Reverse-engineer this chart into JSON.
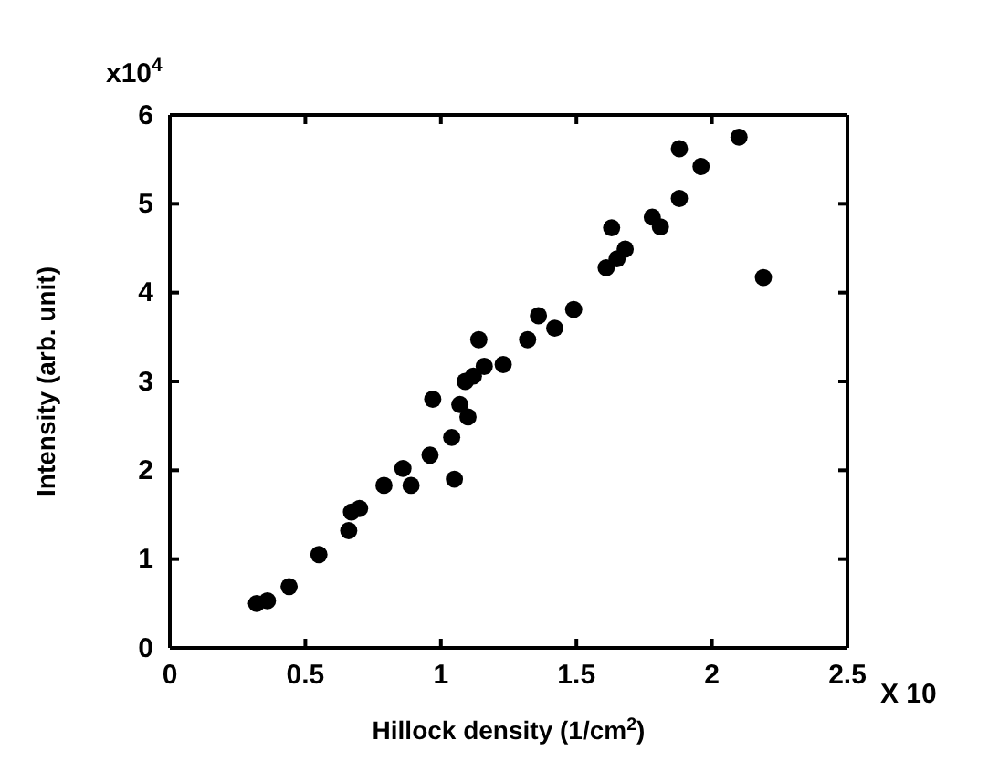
{
  "chart_data": {
    "type": "scatter",
    "xlabel": "Hillock density (1/cm$^{2}$)",
    "ylabel": "Intensity (arb. unit)",
    "annotations": [
      "x10$^{4}$",
      "X 10"
    ],
    "xlim": [
      0,
      2.5
    ],
    "xticks": [
      0,
      0.5,
      1,
      1.5,
      2,
      2.5
    ],
    "ylim": [
      0,
      6
    ],
    "yticks": [
      0,
      1,
      2,
      3,
      4,
      5,
      6
    ],
    "grid": false,
    "marker": "circle",
    "series": [
      {
        "color": "#000000",
        "x": [
          0.32,
          0.36,
          0.44,
          0.55,
          0.66,
          0.67,
          0.7,
          0.79,
          0.86,
          0.89,
          0.96,
          0.97,
          1.04,
          1.05,
          1.07,
          1.1,
          1.09,
          1.12,
          1.14,
          1.16,
          1.23,
          1.32,
          1.36,
          1.42,
          1.49,
          1.61,
          1.63,
          1.65,
          1.68,
          1.78,
          1.81,
          1.88,
          1.88,
          1.96,
          2.1,
          2.19
        ],
        "values": [
          0.5,
          0.53,
          0.69,
          1.05,
          1.32,
          1.53,
          1.57,
          1.83,
          2.02,
          1.83,
          2.17,
          2.8,
          2.37,
          1.9,
          2.74,
          2.6,
          3.0,
          3.06,
          3.47,
          3.17,
          3.19,
          3.47,
          3.74,
          3.6,
          3.81,
          4.28,
          4.73,
          4.38,
          4.49,
          4.85,
          4.74,
          5.06,
          5.62,
          5.42,
          5.75,
          4.17
        ]
      }
    ]
  }
}
